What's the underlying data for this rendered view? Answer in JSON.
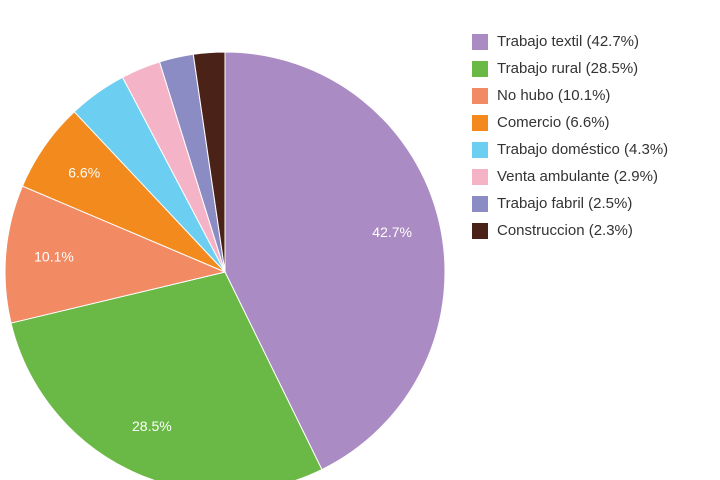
{
  "chart_data": {
    "type": "pie",
    "categories": [
      "Trabajo textil (42.7%)",
      "Trabajo rural (28.5%)",
      "No hubo (10.1%)",
      "Comercio (6.6%)",
      "Trabajo doméstico (4.3%)",
      "Venta ambulante (2.9%)",
      "Trabajo fabril (2.5%)",
      "Construccion (2.3%)"
    ],
    "values": [
      42.7,
      28.5,
      10.1,
      6.6,
      4.3,
      2.9,
      2.5,
      2.3
    ],
    "value_labels": [
      "42.7%",
      "28.5%",
      "10.1%",
      "6.6%",
      null,
      null,
      null,
      null
    ],
    "colors": [
      "#ab8bc3",
      "#6ab946",
      "#f28a64",
      "#f28a1e",
      "#6ccef0",
      "#f5b3c8",
      "#8c8cc4",
      "#4a2218"
    ],
    "legend": "right"
  }
}
